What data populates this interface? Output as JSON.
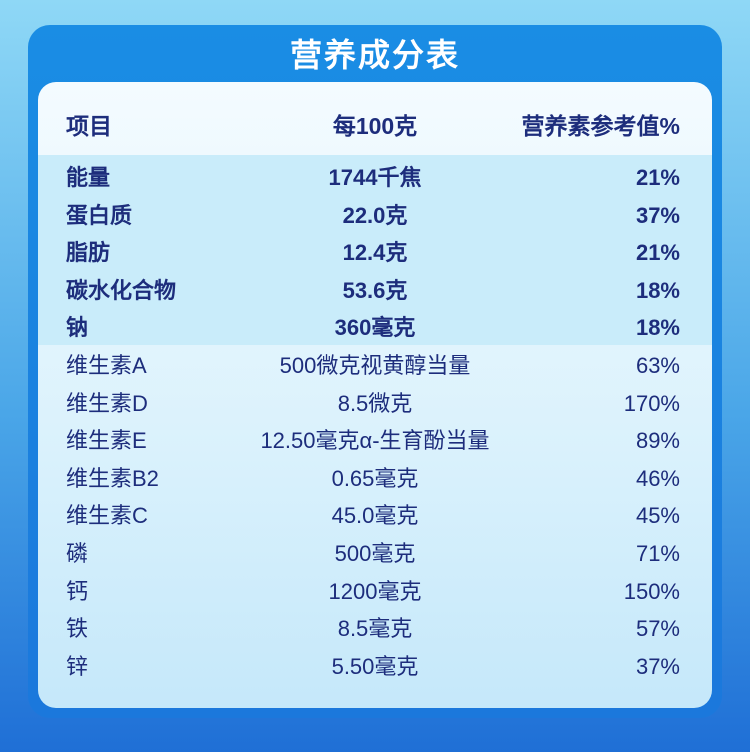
{
  "header": {
    "title": "营养成分表"
  },
  "table": {
    "columns": [
      "项目",
      "每100克",
      "营养素参考值%"
    ],
    "rows": [
      [
        "能量",
        "1744千焦",
        "21%"
      ],
      [
        "蛋白质",
        "22.0克",
        "37%"
      ],
      [
        "脂肪",
        "12.4克",
        "21%"
      ],
      [
        "碳水化合物",
        "53.6克",
        "18%"
      ],
      [
        "钠",
        "360毫克",
        "18%"
      ],
      [
        "维生素A",
        "500微克视黄醇当量",
        "63%"
      ],
      [
        "维生素D",
        "8.5微克",
        "170%"
      ],
      [
        "维生素E",
        "12.50毫克α-生育酚当量",
        "89%"
      ],
      [
        "维生素B2",
        "0.65毫克",
        "46%"
      ],
      [
        "维生素C",
        "45.0毫克",
        "45%"
      ],
      [
        "磷",
        "500毫克",
        "71%"
      ],
      [
        "钙",
        "1200毫克",
        "150%"
      ],
      [
        "铁",
        "8.5毫克",
        "57%"
      ],
      [
        "锌",
        "5.50毫克",
        "37%"
      ]
    ]
  }
}
